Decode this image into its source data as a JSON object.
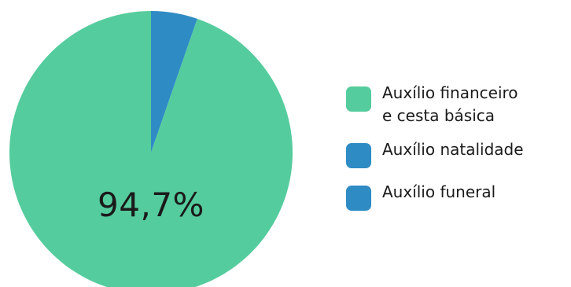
{
  "chart_data": {
    "type": "pie",
    "slices": [
      {
        "label": "Auxílio financeiro\ne cesta básica",
        "value": 94.7,
        "color": "#55cc9d"
      },
      {
        "label": "Auxílio natalidade",
        "value": 5.3,
        "color": "#2f8bc4"
      },
      {
        "label": "Auxílio funeral",
        "value": 0,
        "color": "#2f8bc4"
      }
    ],
    "center_label": "94,7%",
    "legend_position": "right"
  }
}
